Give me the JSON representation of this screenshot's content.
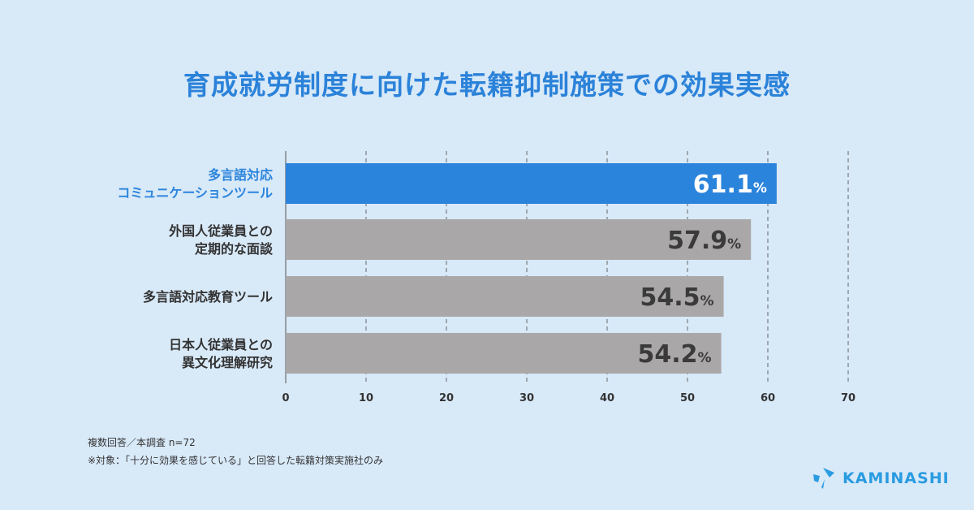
{
  "title": "育成就労制度に向けた転籍抑制施策での効果実感",
  "chart_data": {
    "type": "bar",
    "orientation": "horizontal",
    "categories": [
      [
        "多言語対応",
        "コミュニケーションツール"
      ],
      [
        "外国人従業員との",
        "定期的な面談"
      ],
      [
        "多言語対応教育ツール"
      ],
      [
        "日本人従業員との",
        "異文化理解研究"
      ]
    ],
    "values": [
      61.1,
      57.9,
      54.5,
      54.2
    ],
    "value_labels": [
      "61.1",
      "57.9",
      "54.5",
      "54.2"
    ],
    "unit": "%",
    "xlim": [
      0,
      70
    ],
    "ticks": [
      0,
      10,
      20,
      30,
      40,
      50,
      60,
      70
    ],
    "grid": "vertical dashed",
    "highlight_index": 0,
    "colors": {
      "highlight": "#2b84dc",
      "default": "#aaa7a8",
      "highlight_label": "#2b84dc",
      "default_label": "#333333"
    }
  },
  "notes": [
    "複数回答／本調査 n=72",
    "※対象：「十分に効果を感じている」と回答した転籍対策実施社のみ"
  ],
  "logo": {
    "text": "KAMINASHI",
    "color": "#2a9be0"
  }
}
